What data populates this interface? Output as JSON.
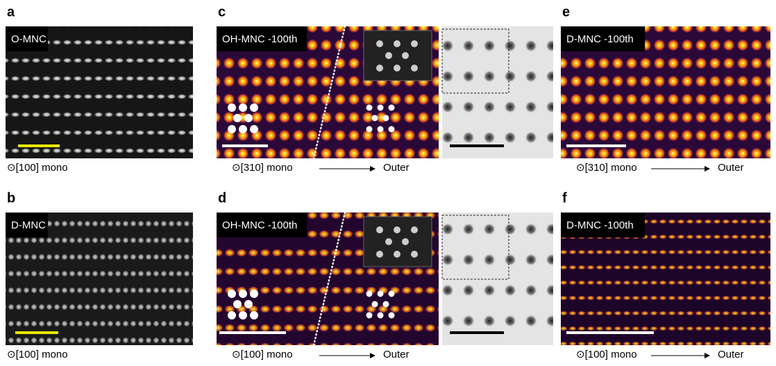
{
  "panels": [
    {
      "letter": "a",
      "label": "O-MNC",
      "caption": "⊙[100] mono"
    },
    {
      "letter": "b",
      "label": "D-MNC",
      "caption": "⊙[100] mono"
    },
    {
      "letter": "c",
      "label": "OH-MNC -100th",
      "caption": "⊙[310] mono",
      "direction": "Outer"
    },
    {
      "letter": "d",
      "label": "OH-MNC -100th",
      "caption": "⊙[100] mono",
      "direction": "Outer"
    },
    {
      "letter": "e",
      "label": "D-MNC -100th",
      "caption": "⊙[310] mono",
      "direction": "Outer"
    },
    {
      "letter": "f",
      "label": "D-MNC -100th",
      "caption": "⊙[100] mono",
      "direction": "Outer"
    }
  ]
}
